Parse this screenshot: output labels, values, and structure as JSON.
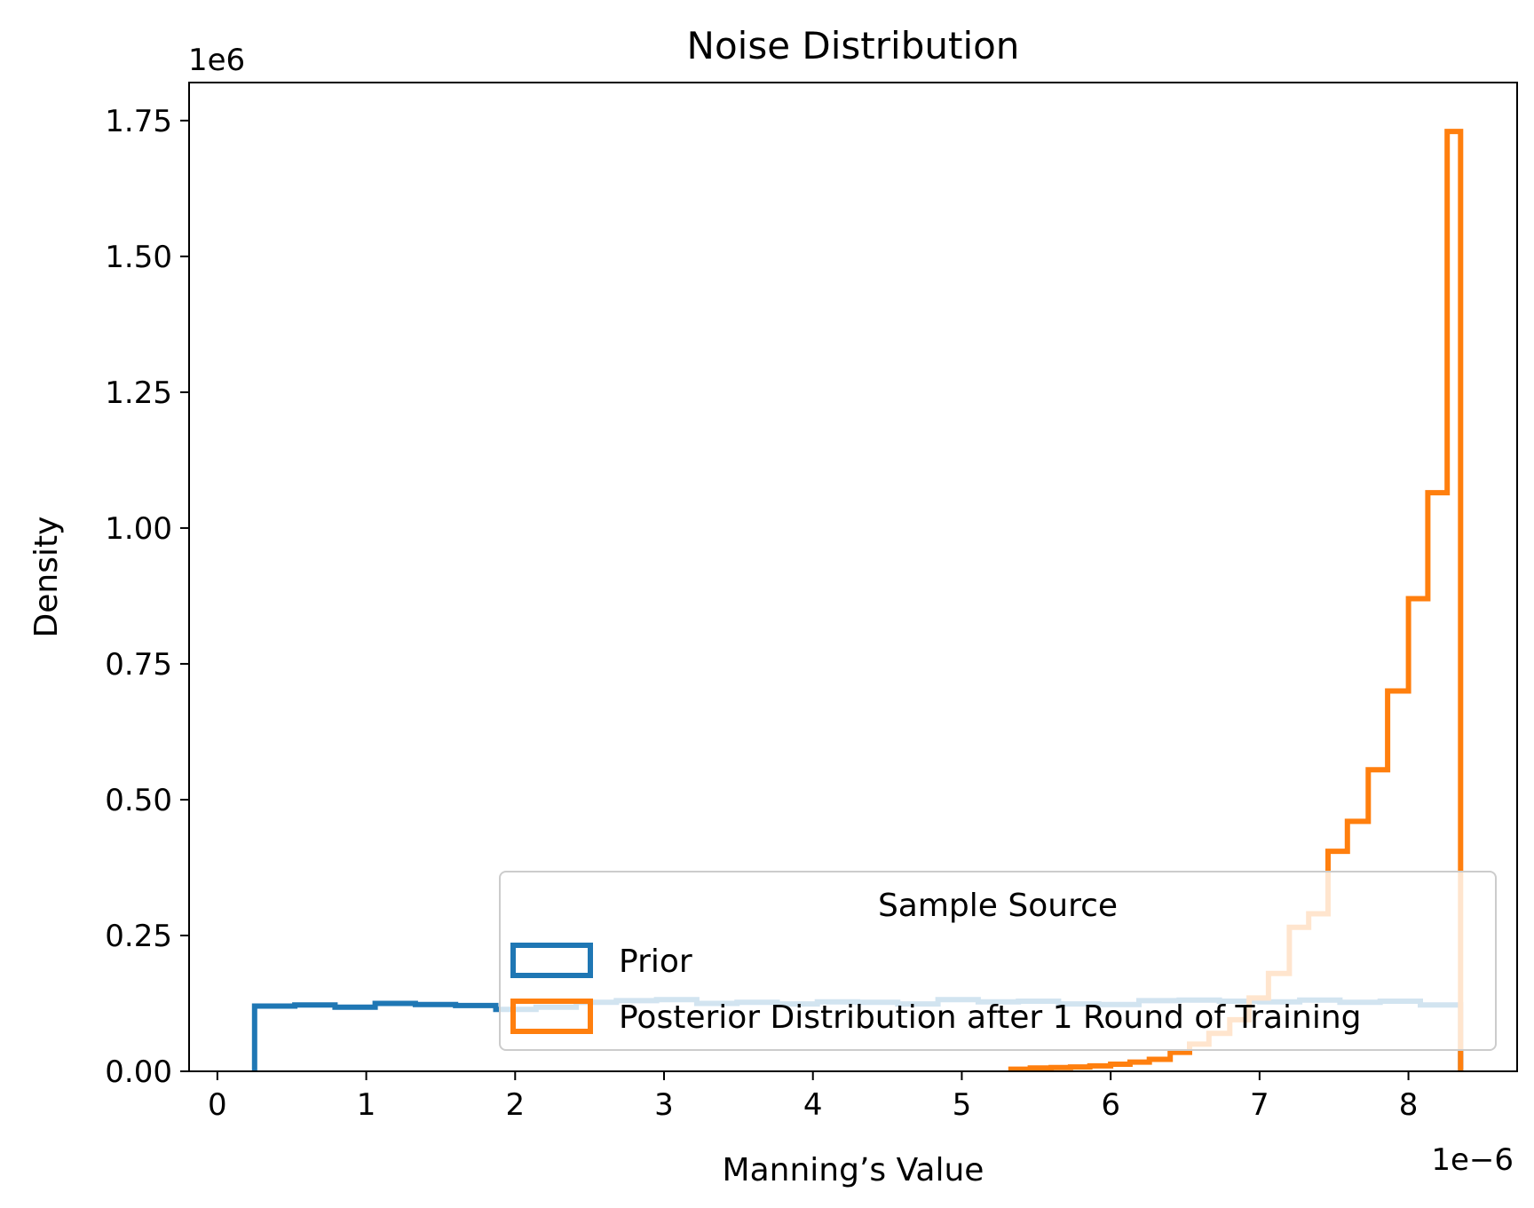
{
  "chart_data": {
    "type": "histogram",
    "title": "Noise Distribution",
    "xlabel": "Manning’s Value",
    "ylabel": "Density",
    "x_offset_label": "1e−6",
    "y_offset_label": "1e6",
    "x_scale_factor": 1e-06,
    "y_scale_factor": 1000000.0,
    "xlim": [
      -0.19,
      8.73
    ],
    "ylim": [
      0,
      1.82
    ],
    "x_ticks": [
      0,
      1,
      2,
      3,
      4,
      5,
      6,
      7,
      8
    ],
    "x_tick_labels": [
      "0",
      "1",
      "2",
      "3",
      "4",
      "5",
      "6",
      "7",
      "8"
    ],
    "y_ticks": [
      0,
      0.25,
      0.5,
      0.75,
      1.0,
      1.25,
      1.5,
      1.75
    ],
    "y_tick_labels": [
      "0.00",
      "0.25",
      "0.50",
      "0.75",
      "1.00",
      "1.25",
      "1.50",
      "1.75"
    ],
    "grid": false,
    "legend": {
      "title": "Sample Source",
      "position": "lower right",
      "entries": [
        "Prior",
        "Posterior Distribution after 1 Round of Training"
      ]
    },
    "series": [
      {
        "name": "Prior",
        "color": "#1f77b4",
        "bin_edges": [
          0.25,
          0.52,
          0.79,
          1.06,
          1.33,
          1.6,
          1.87,
          2.14,
          2.41,
          2.68,
          2.95,
          3.22,
          3.49,
          3.76,
          4.03,
          4.3,
          4.57,
          4.84,
          5.11,
          5.38,
          5.65,
          5.92,
          6.19,
          6.46,
          6.73,
          7.0,
          7.27,
          7.54,
          7.81,
          8.08,
          8.35
        ],
        "values": [
          0.12,
          0.122,
          0.118,
          0.125,
          0.123,
          0.121,
          0.114,
          0.118,
          0.127,
          0.13,
          0.132,
          0.125,
          0.127,
          0.124,
          0.128,
          0.127,
          0.124,
          0.132,
          0.128,
          0.129,
          0.124,
          0.123,
          0.13,
          0.131,
          0.129,
          0.128,
          0.131,
          0.127,
          0.129,
          0.122
        ]
      },
      {
        "name": "Posterior Distribution after 1 Round of Training",
        "color": "#ff7f0e",
        "bin_edges": [
          5.33,
          5.46,
          5.6,
          5.73,
          5.86,
          6.0,
          6.13,
          6.26,
          6.4,
          6.53,
          6.66,
          6.8,
          6.93,
          7.06,
          7.2,
          7.33,
          7.46,
          7.59,
          7.73,
          7.86,
          8.0,
          8.13,
          8.26,
          8.35
        ],
        "values": [
          0.004,
          0.006,
          0.007,
          0.008,
          0.01,
          0.013,
          0.017,
          0.022,
          0.035,
          0.05,
          0.07,
          0.095,
          0.135,
          0.18,
          0.265,
          0.29,
          0.405,
          0.46,
          0.555,
          0.7,
          0.87,
          1.065,
          1.73
        ]
      }
    ]
  }
}
